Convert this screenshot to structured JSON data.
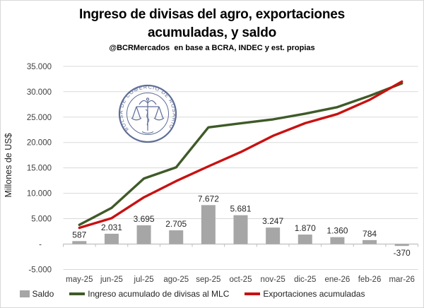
{
  "header": {
    "subtitle": "@BCRMercados  en base a BCRA, INDEC y est. propias"
  },
  "watermark": {
    "text": "BOLSA DE COMERCIO DE ROSARIO",
    "color": "#4a5a8a"
  },
  "chart_data": {
    "type": "bar+line combo",
    "title": "Ingreso de divisas del agro, exportaciones acumuladas, y saldo",
    "title_lines": [
      "Ingreso de divisas del agro, exportaciones",
      "acumuladas, y saldo"
    ],
    "subtitle": "@BCRMercados  en base a BCRA, INDEC y est. propias",
    "ylabel": "Millones de US$",
    "ylim": [
      -5000,
      35000
    ],
    "ytick_step": 5000,
    "grid": true,
    "legend_position": "bottom",
    "categories": [
      "may-25",
      "jun-25",
      "jul-25",
      "ago-25",
      "sep-25",
      "oct-25",
      "nov-25",
      "dic-25",
      "ene-26",
      "feb-26",
      "mar-26"
    ],
    "yticks": [
      {
        "v": 35000,
        "label": "35.000"
      },
      {
        "v": 30000,
        "label": "30.000"
      },
      {
        "v": 25000,
        "label": "25.000"
      },
      {
        "v": 20000,
        "label": "20.000"
      },
      {
        "v": 15000,
        "label": "15.000"
      },
      {
        "v": 10000,
        "label": "10.000"
      },
      {
        "v": 5000,
        "label": "5.000"
      },
      {
        "v": 0,
        "label": "-"
      },
      {
        "v": -5000,
        "label": "-5.000"
      }
    ],
    "series": [
      {
        "name": "Saldo",
        "type": "bar",
        "color": "#a6a6a6",
        "values": [
          587,
          2031,
          3695,
          2705,
          7672,
          5681,
          3247,
          1870,
          1360,
          784,
          -370
        ],
        "labels": [
          "587",
          "2.031",
          "3.695",
          "2.705",
          "7.672",
          "5.681",
          "3.247",
          "1.870",
          "1.360",
          "784",
          "-370"
        ]
      },
      {
        "name": "Ingreso acumulado de divisas al MLC",
        "type": "line",
        "color": "#3f5a28",
        "values": [
          3787,
          7131,
          12895,
          15105,
          22972,
          23781,
          24547,
          25670,
          26960,
          29184,
          31630
        ]
      },
      {
        "name": "Exportaciones acumuladas",
        "type": "line",
        "color": "#c81111",
        "values": [
          3200,
          5100,
          9200,
          12400,
          15300,
          18100,
          21300,
          23800,
          25600,
          28400,
          32000
        ]
      }
    ]
  }
}
